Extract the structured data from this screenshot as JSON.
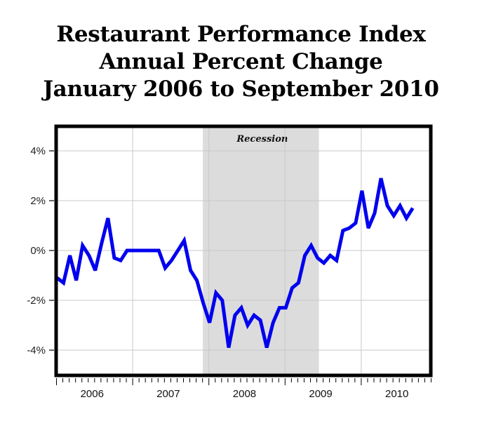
{
  "title_lines": [
    "Restaurant Performance Index",
    "Annual Percent Change",
    "January 2006 to September 2010"
  ],
  "colors": {
    "line": "#0000ee",
    "recession_shade": "#dcdcdc",
    "grid": "#c8c8c8",
    "frame": "#000000"
  },
  "chart_data": {
    "type": "line",
    "title": "Restaurant Performance Index Annual Percent Change January 2006 to September 2010",
    "xlabel": "",
    "ylabel": "",
    "ylim": [
      -5,
      5
    ],
    "yticks": [
      4,
      2,
      0,
      -2,
      -4
    ],
    "ytick_labels": [
      "4%",
      "2%",
      "0%",
      "-2%",
      "-4%"
    ],
    "xtick_labels": [
      "2006",
      "2007",
      "2008",
      "2009",
      "2010"
    ],
    "grid": true,
    "legend": null,
    "annotations": [
      {
        "text": "Recession",
        "type": "shaded_region",
        "start": "2007-12",
        "end": "2009-06"
      }
    ],
    "series": [
      {
        "name": "Restaurant Performance Index (annual % change)",
        "x": [
          "2006-01",
          "2006-02",
          "2006-03",
          "2006-04",
          "2006-05",
          "2006-06",
          "2006-07",
          "2006-08",
          "2006-09",
          "2006-10",
          "2006-11",
          "2006-12",
          "2007-01",
          "2007-02",
          "2007-03",
          "2007-04",
          "2007-05",
          "2007-06",
          "2007-07",
          "2007-08",
          "2007-09",
          "2007-10",
          "2007-11",
          "2007-12",
          "2008-01",
          "2008-02",
          "2008-03",
          "2008-04",
          "2008-05",
          "2008-06",
          "2008-07",
          "2008-08",
          "2008-09",
          "2008-10",
          "2008-11",
          "2008-12",
          "2009-01",
          "2009-02",
          "2009-03",
          "2009-04",
          "2009-05",
          "2009-06",
          "2009-07",
          "2009-08",
          "2009-09",
          "2009-10",
          "2009-11",
          "2009-12",
          "2010-01",
          "2010-02",
          "2010-03",
          "2010-04",
          "2010-05",
          "2010-06",
          "2010-07",
          "2010-08",
          "2010-09"
        ],
        "values": [
          -1.1,
          -1.3,
          -0.2,
          -1.2,
          0.2,
          -0.2,
          -0.8,
          0.3,
          1.3,
          -0.3,
          -0.4,
          0.0,
          0.0,
          0.0,
          0.0,
          0.0,
          0.0,
          -0.7,
          -0.4,
          0.0,
          0.4,
          -0.8,
          -1.2,
          -2.1,
          -2.9,
          -1.7,
          -2.0,
          -3.9,
          -2.6,
          -2.3,
          -3.0,
          -2.6,
          -2.8,
          -3.9,
          -2.9,
          -2.3,
          -2.3,
          -1.5,
          -1.3,
          -0.2,
          0.2,
          -0.3,
          -0.5,
          -0.2,
          -0.4,
          0.8,
          0.9,
          1.1,
          2.4,
          0.9,
          1.5,
          2.9,
          1.8,
          1.4,
          1.8,
          1.3,
          1.7
        ]
      }
    ]
  }
}
